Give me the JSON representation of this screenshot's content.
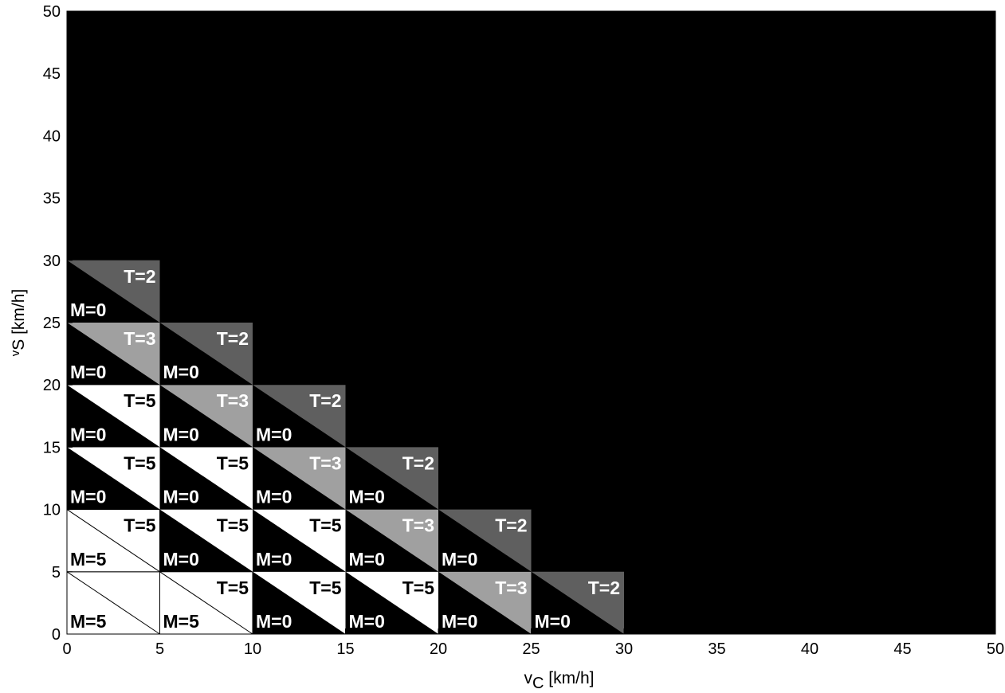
{
  "chart_data": {
    "type": "heatmap",
    "title": "",
    "xlabel": "v",
    "xlabel_sub": "C",
    "xlabel_unit": " [km/h]",
    "ylabel": "v",
    "ylabel_sub": "S",
    "ylabel_unit": " [km/h]",
    "xlim": [
      0,
      50
    ],
    "ylim": [
      0,
      50
    ],
    "xticks": [
      0,
      5,
      10,
      15,
      20,
      25,
      30,
      35,
      40,
      45,
      50
    ],
    "yticks": [
      0,
      5,
      10,
      15,
      20,
      25,
      30,
      35,
      40,
      45,
      50
    ],
    "background_color": "#000000",
    "level_colors": {
      "0": "#000000",
      "2": "#5f5f5f",
      "3": "#a0a0a0",
      "5": "#ffffff"
    },
    "cells": [
      {
        "x0": 0,
        "y0": 0,
        "T": 5,
        "M": 5,
        "t_label": "",
        "m_label": "M=5"
      },
      {
        "x0": 5,
        "y0": 0,
        "T": 5,
        "M": 5,
        "t_label": "T=5",
        "m_label": "M=5"
      },
      {
        "x0": 10,
        "y0": 0,
        "T": 5,
        "M": 0,
        "t_label": "T=5",
        "m_label": "M=0"
      },
      {
        "x0": 15,
        "y0": 0,
        "T": 5,
        "M": 0,
        "t_label": "T=5",
        "m_label": "M=0"
      },
      {
        "x0": 20,
        "y0": 0,
        "T": 3,
        "M": 0,
        "t_label": "T=3",
        "m_label": "M=0"
      },
      {
        "x0": 25,
        "y0": 0,
        "T": 2,
        "M": 0,
        "t_label": "T=2",
        "m_label": "M=0"
      },
      {
        "x0": 0,
        "y0": 5,
        "T": 5,
        "M": 5,
        "t_label": "T=5",
        "m_label": "M=5"
      },
      {
        "x0": 5,
        "y0": 5,
        "T": 5,
        "M": 0,
        "t_label": "T=5",
        "m_label": "M=0"
      },
      {
        "x0": 10,
        "y0": 5,
        "T": 5,
        "M": 0,
        "t_label": "T=5",
        "m_label": "M=0"
      },
      {
        "x0": 15,
        "y0": 5,
        "T": 3,
        "M": 0,
        "t_label": "T=3",
        "m_label": "M=0"
      },
      {
        "x0": 20,
        "y0": 5,
        "T": 2,
        "M": 0,
        "t_label": "T=2",
        "m_label": "M=0"
      },
      {
        "x0": 0,
        "y0": 10,
        "T": 5,
        "M": 0,
        "t_label": "T=5",
        "m_label": "M=0"
      },
      {
        "x0": 5,
        "y0": 10,
        "T": 5,
        "M": 0,
        "t_label": "T=5",
        "m_label": "M=0"
      },
      {
        "x0": 10,
        "y0": 10,
        "T": 3,
        "M": 0,
        "t_label": "T=3",
        "m_label": "M=0"
      },
      {
        "x0": 15,
        "y0": 10,
        "T": 2,
        "M": 0,
        "t_label": "T=2",
        "m_label": "M=0"
      },
      {
        "x0": 0,
        "y0": 15,
        "T": 5,
        "M": 0,
        "t_label": "T=5",
        "m_label": "M=0"
      },
      {
        "x0": 5,
        "y0": 15,
        "T": 3,
        "M": 0,
        "t_label": "T=3",
        "m_label": "M=0"
      },
      {
        "x0": 10,
        "y0": 15,
        "T": 2,
        "M": 0,
        "t_label": "T=2",
        "m_label": "M=0"
      },
      {
        "x0": 0,
        "y0": 20,
        "T": 3,
        "M": 0,
        "t_label": "T=3",
        "m_label": "M=0"
      },
      {
        "x0": 5,
        "y0": 20,
        "T": 2,
        "M": 0,
        "t_label": "T=2",
        "m_label": "M=0"
      },
      {
        "x0": 0,
        "y0": 25,
        "T": 2,
        "M": 0,
        "t_label": "T=2",
        "m_label": "M=0"
      }
    ]
  }
}
